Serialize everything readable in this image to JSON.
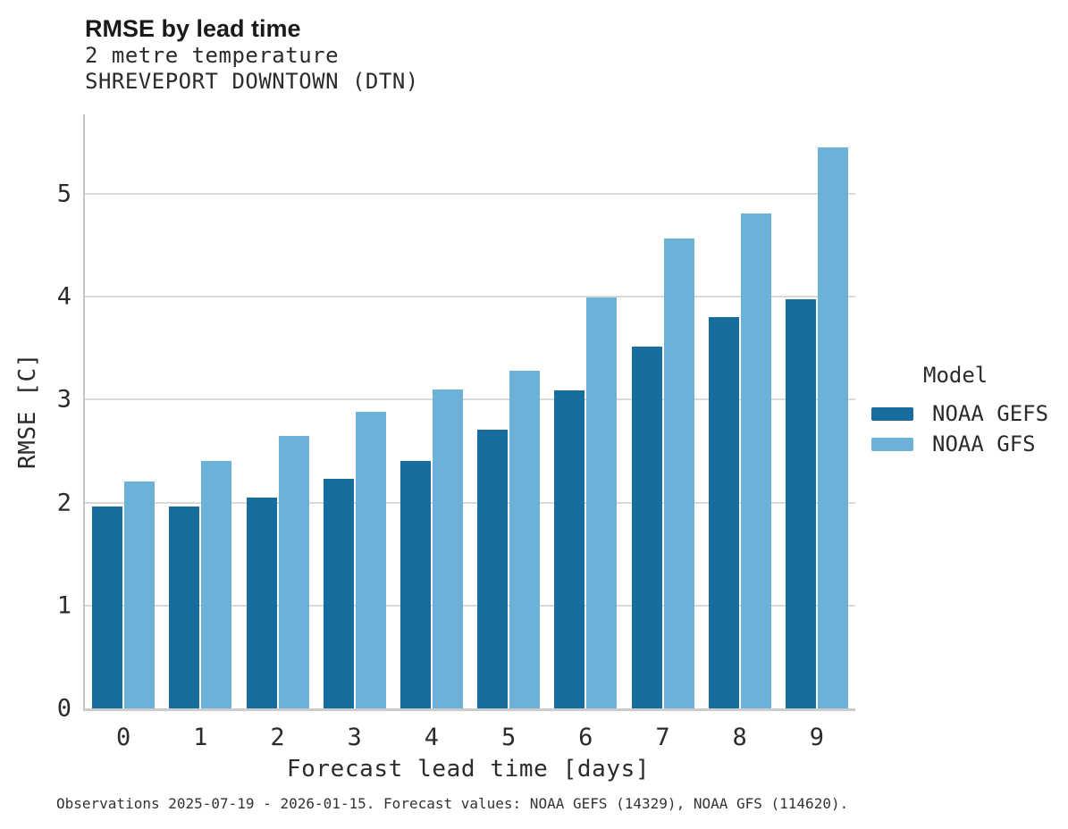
{
  "header": {
    "title": "RMSE by lead time",
    "subtitle_variable": "2 metre temperature",
    "subtitle_station": "SHREVEPORT DOWNTOWN (DTN)"
  },
  "chart_data": {
    "type": "bar",
    "title": "RMSE by lead time",
    "subtitle": [
      "2 metre temperature",
      "SHREVEPORT DOWNTOWN (DTN)"
    ],
    "xlabel": "Forecast lead time [days]",
    "ylabel": "RMSE [C]",
    "categories": [
      "0",
      "1",
      "2",
      "3",
      "4",
      "5",
      "6",
      "7",
      "8",
      "9"
    ],
    "series": [
      {
        "name": "NOAA GEFS",
        "color": "#176d9d",
        "values": [
          1.96,
          1.96,
          2.05,
          2.23,
          2.4,
          2.71,
          3.09,
          3.51,
          3.8,
          3.97
        ]
      },
      {
        "name": "NOAA GFS",
        "color": "#6bb1d8",
        "values": [
          2.2,
          2.4,
          2.65,
          2.88,
          3.1,
          3.28,
          3.99,
          4.56,
          4.81,
          5.45
        ]
      }
    ],
    "ylim": [
      0,
      5.77
    ],
    "yticks": [
      0,
      1,
      2,
      3,
      4,
      5
    ],
    "grid": "horizontal",
    "legend_title": "Model",
    "legend_position": "right",
    "colors": {
      "gridline": "#d9d9d9",
      "spine": "#c6c6c6",
      "text": "#2b2b2b"
    }
  },
  "footer": {
    "text": "Observations 2025-07-19 - 2026-01-15. Forecast values: NOAA GEFS (14329), NOAA GFS (114620)."
  }
}
